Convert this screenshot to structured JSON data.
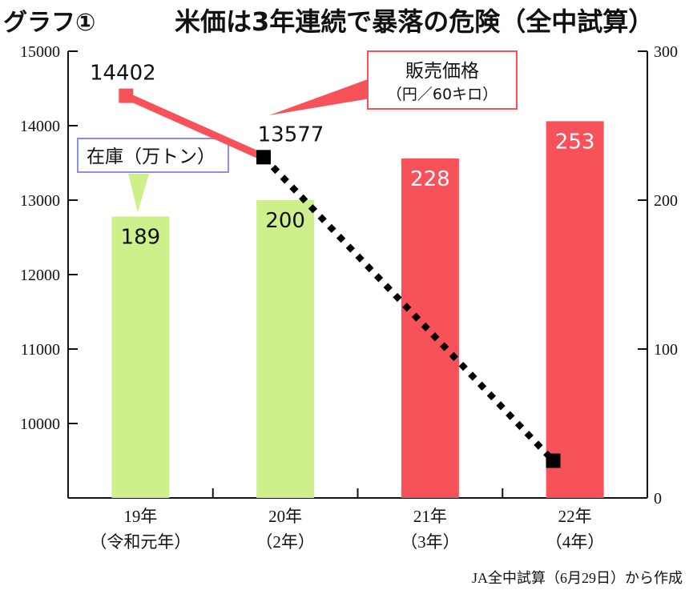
{
  "header": {
    "graph_no": "グラフ①",
    "title": "米価は3年連続で暴落の危険（全中試算）"
  },
  "legend": {
    "stock_label": "在庫（万トン）",
    "price_label": "販売価格",
    "price_unit": "（円／60キロ）"
  },
  "source": "JA全中試算（6月29日）から作成",
  "chart_data": {
    "type": "bar",
    "title": "米価は3年連続で暴落の危険（全中試算）",
    "categories": [
      "19年",
      "20年",
      "21年",
      "22年"
    ],
    "category_sublabels": [
      "（令和元年）",
      "（2年）",
      "（3年）",
      "（4年）"
    ],
    "left_axis": {
      "min": 9000,
      "max": 15000,
      "ticks": [
        10000,
        11000,
        12000,
        13000,
        14000,
        15000
      ]
    },
    "right_axis": {
      "min": 0,
      "max": 300,
      "ticks": [
        0,
        100,
        200,
        300
      ]
    },
    "series": [
      {
        "name": "在庫（万トン）",
        "kind": "bar",
        "axis": "right",
        "values": [
          189,
          200,
          228,
          253
        ],
        "labels": [
          "189",
          "200",
          "228",
          "253"
        ],
        "colors": [
          "#cdf08c",
          "#cdf08c",
          "#f7525a",
          "#f7525a"
        ]
      },
      {
        "name": "販売価格（円／60キロ）",
        "kind": "line",
        "axis": "left",
        "points": [
          {
            "x": 0.4,
            "y": 14402,
            "label": "14402"
          },
          {
            "x": 1.35,
            "y": 13577,
            "label": "13577"
          },
          {
            "x": 3.35,
            "y": 9500
          }
        ],
        "segment_styles": [
          "solid",
          "dotted"
        ],
        "colors": [
          "#f7525a",
          "#000000"
        ]
      }
    ],
    "grid": false
  }
}
